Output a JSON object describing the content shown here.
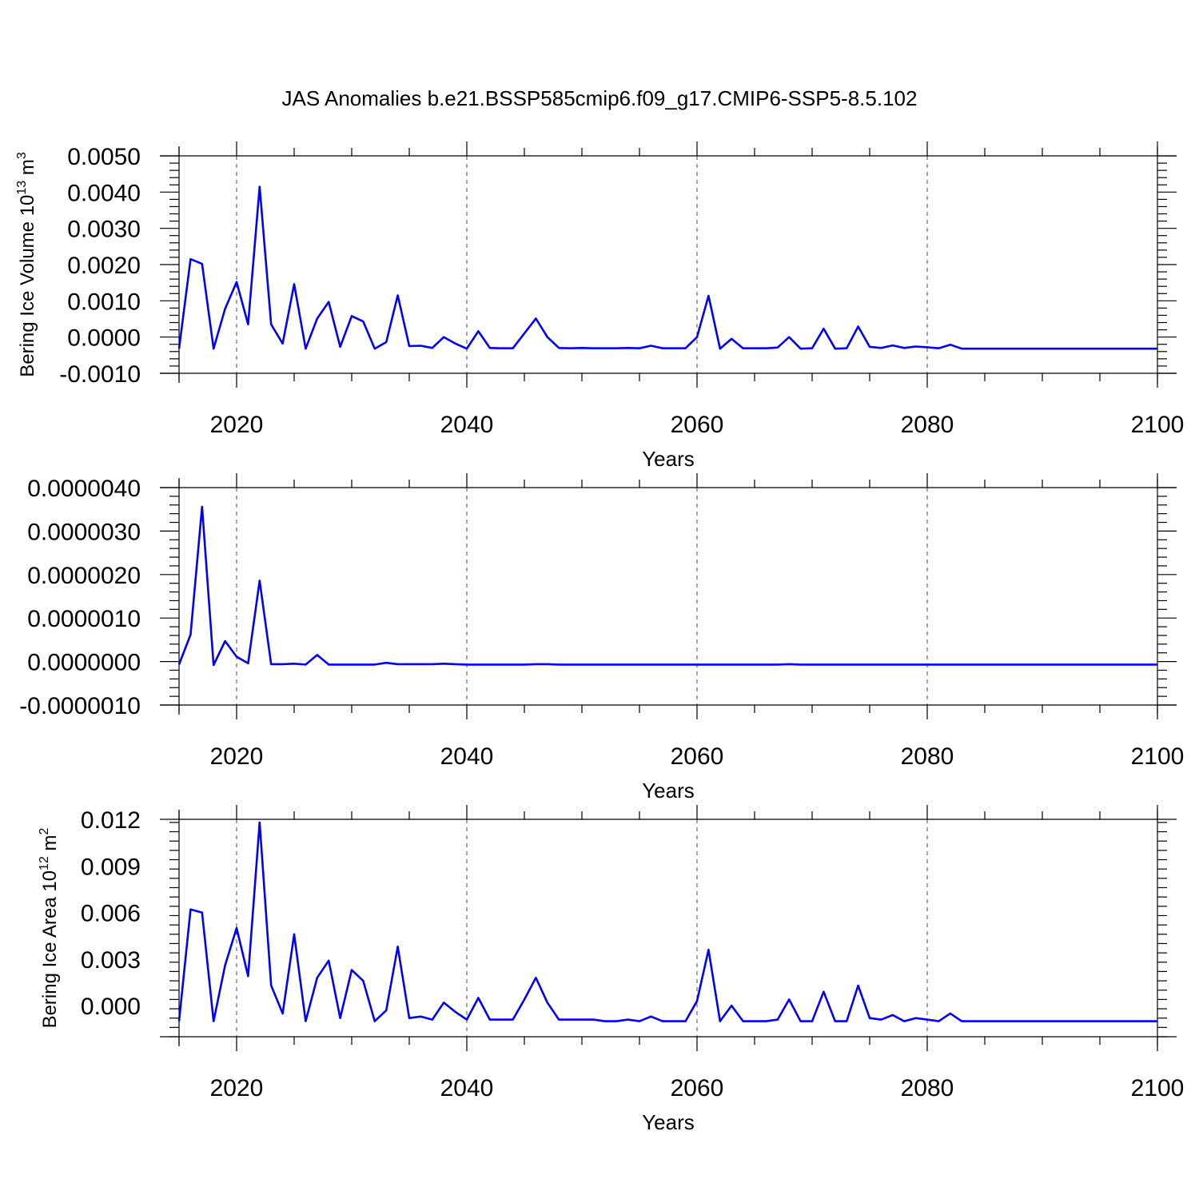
{
  "title": "JAS Anomalies b.e21.BSSP585cmip6.f09_g17.CMIP6-SSP5-8.5.102",
  "colors": {
    "series": "#0000ff",
    "axes": "#000000",
    "background": "#ffffff"
  },
  "chart_data": [
    {
      "type": "line",
      "xlabel": "Years",
      "ylabel": "Bering Ice Volume 10^13 m^3",
      "ylabel_parts": {
        "base": "Bering Ice Volume 10",
        "exp": "13",
        "unit": " m",
        "unit_exp": "3"
      },
      "xlim": [
        2015,
        2100
      ],
      "ylim": [
        -0.001,
        0.005
      ],
      "xticks": [
        2020,
        2040,
        2060,
        2080,
        2100
      ],
      "xtick_labels": [
        "2020",
        "2040",
        "2060",
        "2080",
        "2100"
      ],
      "yticks": [
        -0.001,
        0,
        0.001,
        0.002,
        0.003,
        0.004,
        0.005
      ],
      "ytick_labels": [
        "-0.0010",
        "0.0000",
        "0.0010",
        "0.0020",
        "0.0030",
        "0.0040",
        "0.0050"
      ],
      "grid": "dashed vertical lines at major x ticks",
      "x": [
        2015,
        2016,
        2017,
        2018,
        2019,
        2020,
        2021,
        2022,
        2023,
        2024,
        2025,
        2026,
        2027,
        2028,
        2029,
        2030,
        2031,
        2032,
        2033,
        2034,
        2035,
        2036,
        2037,
        2038,
        2039,
        2040,
        2041,
        2042,
        2043,
        2044,
        2045,
        2046,
        2047,
        2048,
        2049,
        2050,
        2051,
        2052,
        2053,
        2054,
        2055,
        2056,
        2057,
        2058,
        2059,
        2060,
        2061,
        2062,
        2063,
        2064,
        2065,
        2066,
        2067,
        2068,
        2069,
        2070,
        2071,
        2072,
        2073,
        2074,
        2075,
        2076,
        2077,
        2078,
        2079,
        2080,
        2081,
        2082,
        2083,
        2084,
        2085,
        2086,
        2087,
        2088,
        2089,
        2090,
        2091,
        2092,
        2093,
        2094,
        2095,
        2096,
        2097,
        2098,
        2099,
        2100
      ],
      "series": [
        {
          "values": [
            -0.00032,
            0.00215,
            0.00202,
            -0.00032,
            0.00078,
            0.00152,
            0.00035,
            0.00415,
            0.00035,
            -0.00018,
            0.00146,
            -0.00032,
            0.00051,
            0.00097,
            -0.00027,
            0.00058,
            0.00043,
            -0.00032,
            -0.00014,
            0.00115,
            -0.00025,
            -0.00024,
            -0.0003,
            -0.0,
            -0.00018,
            -0.00032,
            0.00016,
            -0.0003,
            -0.00031,
            -0.00031,
            0.0001,
            0.00051,
            -0.0,
            -0.0003,
            -0.00031,
            -0.0003,
            -0.00031,
            -0.00031,
            -0.00031,
            -0.0003,
            -0.00031,
            -0.00024,
            -0.00031,
            -0.00031,
            -0.00031,
            0.0,
            0.00114,
            -0.00032,
            -5e-05,
            -0.00031,
            -0.00031,
            -0.00031,
            -0.00029,
            0.0,
            -0.00032,
            -0.00031,
            0.00023,
            -0.00032,
            -0.00031,
            0.00029,
            -0.00027,
            -0.0003,
            -0.00023,
            -0.0003,
            -0.00026,
            -0.00028,
            -0.00031,
            -0.00021,
            -0.00032,
            -0.00032,
            -0.00032,
            -0.00032,
            -0.00032,
            -0.00032,
            -0.00032,
            -0.00032,
            -0.00032,
            -0.00032,
            -0.00032,
            -0.00032,
            -0.00032,
            -0.00032,
            -0.00032,
            -0.00032,
            -0.00032,
            -0.00032
          ]
        }
      ]
    },
    {
      "type": "line",
      "xlabel": "Years",
      "ylabel": "",
      "xlim": [
        2015,
        2100
      ],
      "ylim": [
        -1e-06,
        4e-06
      ],
      "xticks": [
        2020,
        2040,
        2060,
        2080,
        2100
      ],
      "xtick_labels": [
        "2020",
        "2040",
        "2060",
        "2080",
        "2100"
      ],
      "yticks": [
        -1e-06,
        0,
        1e-06,
        2e-06,
        3e-06,
        4e-06
      ],
      "ytick_labels": [
        "-0.0000010",
        "0.0000000",
        "0.0000010",
        "0.0000020",
        "0.0000030",
        "0.0000040"
      ],
      "grid": "dashed vertical lines at major x ticks",
      "x": [
        2015,
        2016,
        2017,
        2018,
        2019,
        2020,
        2021,
        2022,
        2023,
        2024,
        2025,
        2026,
        2027,
        2028,
        2029,
        2030,
        2031,
        2032,
        2033,
        2034,
        2035,
        2036,
        2037,
        2038,
        2039,
        2040,
        2041,
        2042,
        2043,
        2044,
        2045,
        2046,
        2047,
        2048,
        2049,
        2050,
        2051,
        2052,
        2053,
        2054,
        2055,
        2056,
        2057,
        2058,
        2059,
        2060,
        2061,
        2062,
        2063,
        2064,
        2065,
        2066,
        2067,
        2068,
        2069,
        2070,
        2071,
        2072,
        2073,
        2074,
        2075,
        2076,
        2077,
        2078,
        2079,
        2080,
        2081,
        2082,
        2083,
        2084,
        2085,
        2086,
        2087,
        2088,
        2089,
        2090,
        2091,
        2092,
        2093,
        2094,
        2095,
        2096,
        2097,
        2098,
        2099,
        2100
      ],
      "series": [
        {
          "values": [
            -7e-08,
            6.2e-07,
            3.56e-06,
            -8e-08,
            4.7e-07,
            1.1e-07,
            -4e-08,
            1.86e-06,
            -6e-08,
            -6e-08,
            -5e-08,
            -7e-08,
            1.5e-07,
            -7e-08,
            -7e-08,
            -7e-08,
            -7e-08,
            -7e-08,
            -3e-08,
            -6e-08,
            -6e-08,
            -6e-08,
            -6e-08,
            -5e-08,
            -6e-08,
            -7e-08,
            -7e-08,
            -7e-08,
            -7e-08,
            -7e-08,
            -7e-08,
            -6e-08,
            -6e-08,
            -7e-08,
            -7e-08,
            -7e-08,
            -7e-08,
            -7e-08,
            -7e-08,
            -7e-08,
            -7e-08,
            -7e-08,
            -7e-08,
            -7e-08,
            -7e-08,
            -7e-08,
            -7e-08,
            -7e-08,
            -7e-08,
            -7e-08,
            -7e-08,
            -7e-08,
            -7e-08,
            -6e-08,
            -7e-08,
            -7e-08,
            -7e-08,
            -7e-08,
            -7e-08,
            -7e-08,
            -7e-08,
            -7e-08,
            -7e-08,
            -7e-08,
            -7e-08,
            -7e-08,
            -7e-08,
            -7e-08,
            -7e-08,
            -7e-08,
            -7e-08,
            -7e-08,
            -7e-08,
            -7e-08,
            -7e-08,
            -7e-08,
            -7e-08,
            -7e-08,
            -7e-08,
            -7e-08,
            -7e-08,
            -7e-08,
            -7e-08,
            -7e-08,
            -7e-08,
            -7e-08
          ]
        }
      ]
    },
    {
      "type": "line",
      "xlabel": "Years",
      "ylabel": "Bering Ice Area 10^12 m^2",
      "ylabel_parts": {
        "base": "Bering Ice Area 10",
        "exp": "12",
        "unit": " m",
        "unit_exp": "2"
      },
      "xlim": [
        2015,
        2100
      ],
      "ylim": [
        -0.002,
        0.012
      ],
      "xticks": [
        2020,
        2040,
        2060,
        2080,
        2100
      ],
      "xtick_labels": [
        "2020",
        "2040",
        "2060",
        "2080",
        "2100"
      ],
      "yticks": [
        0,
        0.003,
        0.006,
        0.009,
        0.012
      ],
      "ytick_labels": [
        "0.000",
        "0.003",
        "0.006",
        "0.009",
        "0.012"
      ],
      "grid": "dashed vertical lines at major x ticks",
      "x": [
        2015,
        2016,
        2017,
        2018,
        2019,
        2020,
        2021,
        2022,
        2023,
        2024,
        2025,
        2026,
        2027,
        2028,
        2029,
        2030,
        2031,
        2032,
        2033,
        2034,
        2035,
        2036,
        2037,
        2038,
        2039,
        2040,
        2041,
        2042,
        2043,
        2044,
        2045,
        2046,
        2047,
        2048,
        2049,
        2050,
        2051,
        2052,
        2053,
        2054,
        2055,
        2056,
        2057,
        2058,
        2059,
        2060,
        2061,
        2062,
        2063,
        2064,
        2065,
        2066,
        2067,
        2068,
        2069,
        2070,
        2071,
        2072,
        2073,
        2074,
        2075,
        2076,
        2077,
        2078,
        2079,
        2080,
        2081,
        2082,
        2083,
        2084,
        2085,
        2086,
        2087,
        2088,
        2089,
        2090,
        2091,
        2092,
        2093,
        2094,
        2095,
        2096,
        2097,
        2098,
        2099,
        2100
      ],
      "series": [
        {
          "values": [
            -0.001,
            0.0062,
            0.006,
            -0.001,
            0.0026,
            0.005,
            0.0019,
            0.0118,
            0.0013,
            -0.0005,
            0.0046,
            -0.001,
            0.0018,
            0.0029,
            -0.0008,
            0.0023,
            0.0016,
            -0.001,
            -0.0003,
            0.0038,
            -0.0008,
            -0.0007,
            -0.0009,
            0.0002,
            -0.0004,
            -0.0009,
            0.0005,
            -0.0009,
            -0.0009,
            -0.0009,
            0.0004,
            0.0018,
            0.0002,
            -0.0009,
            -0.0009,
            -0.0009,
            -0.0009,
            -0.001,
            -0.001,
            -0.0009,
            -0.001,
            -0.0007,
            -0.001,
            -0.001,
            -0.001,
            0.0003,
            0.0036,
            -0.001,
            0.0,
            -0.001,
            -0.001,
            -0.001,
            -0.0009,
            0.0004,
            -0.001,
            -0.001,
            0.0009,
            -0.001,
            -0.001,
            0.0013,
            -0.0008,
            -0.0009,
            -0.0006,
            -0.001,
            -0.0008,
            -0.0009,
            -0.001,
            -0.0005,
            -0.001,
            -0.001,
            -0.001,
            -0.001,
            -0.001,
            -0.001,
            -0.001,
            -0.001,
            -0.001,
            -0.001,
            -0.001,
            -0.001,
            -0.001,
            -0.001,
            -0.001,
            -0.001,
            -0.001,
            -0.001
          ]
        }
      ]
    }
  ]
}
